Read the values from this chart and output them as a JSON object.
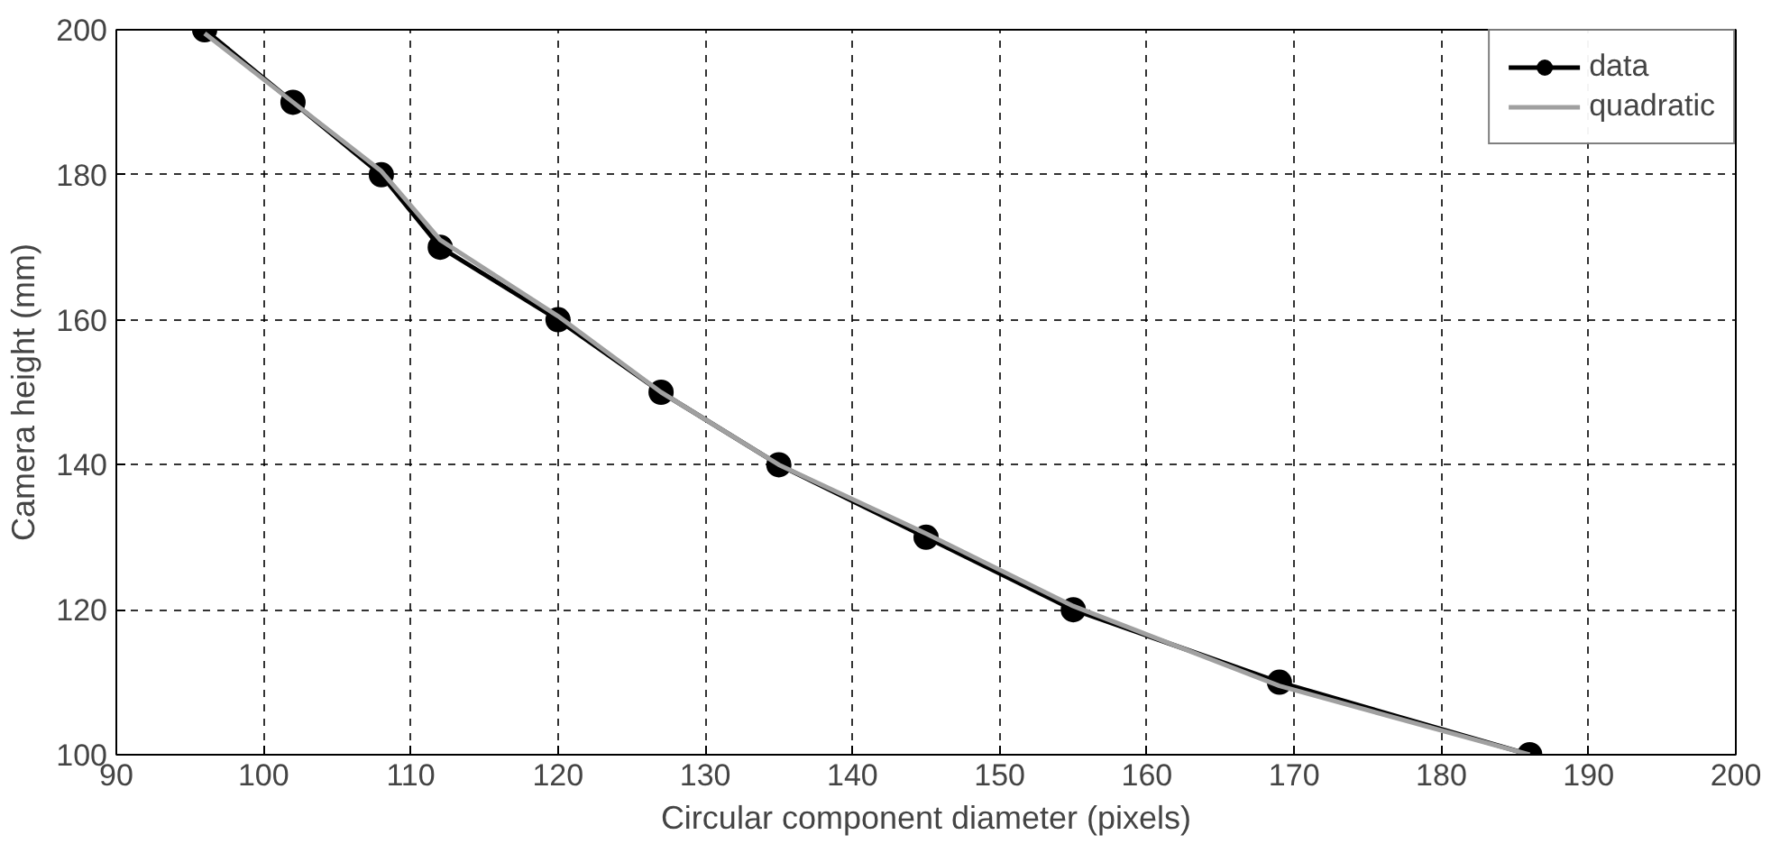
{
  "chart_data": {
    "type": "line",
    "xlabel": "Circular component diameter (pixels)",
    "ylabel": "Camera height (mm)",
    "xlim": [
      90,
      200
    ],
    "ylim": [
      100,
      200
    ],
    "xticks": [
      90,
      100,
      110,
      120,
      130,
      140,
      150,
      160,
      170,
      180,
      190,
      200
    ],
    "yticks": [
      100,
      120,
      140,
      160,
      180,
      200
    ],
    "grid": true,
    "legend": "top right",
    "line_style": "solid",
    "series": [
      {
        "name": "data",
        "color": "#000000",
        "marker": "circle",
        "x": [
          96,
          102,
          108,
          112,
          120,
          127,
          135,
          145,
          155,
          169,
          186
        ],
        "values": [
          200,
          190,
          180,
          170,
          160,
          150,
          140,
          130,
          120,
          110,
          100
        ]
      },
      {
        "name": "quadratic",
        "color": "#a0a0a0",
        "marker": "none",
        "x": [
          96,
          102,
          108,
          112,
          120,
          127,
          135,
          145,
          155,
          169,
          186
        ],
        "values": [
          199.5,
          190,
          180.5,
          171,
          160.5,
          150,
          140,
          130.5,
          120.5,
          109.5,
          100
        ]
      }
    ]
  }
}
